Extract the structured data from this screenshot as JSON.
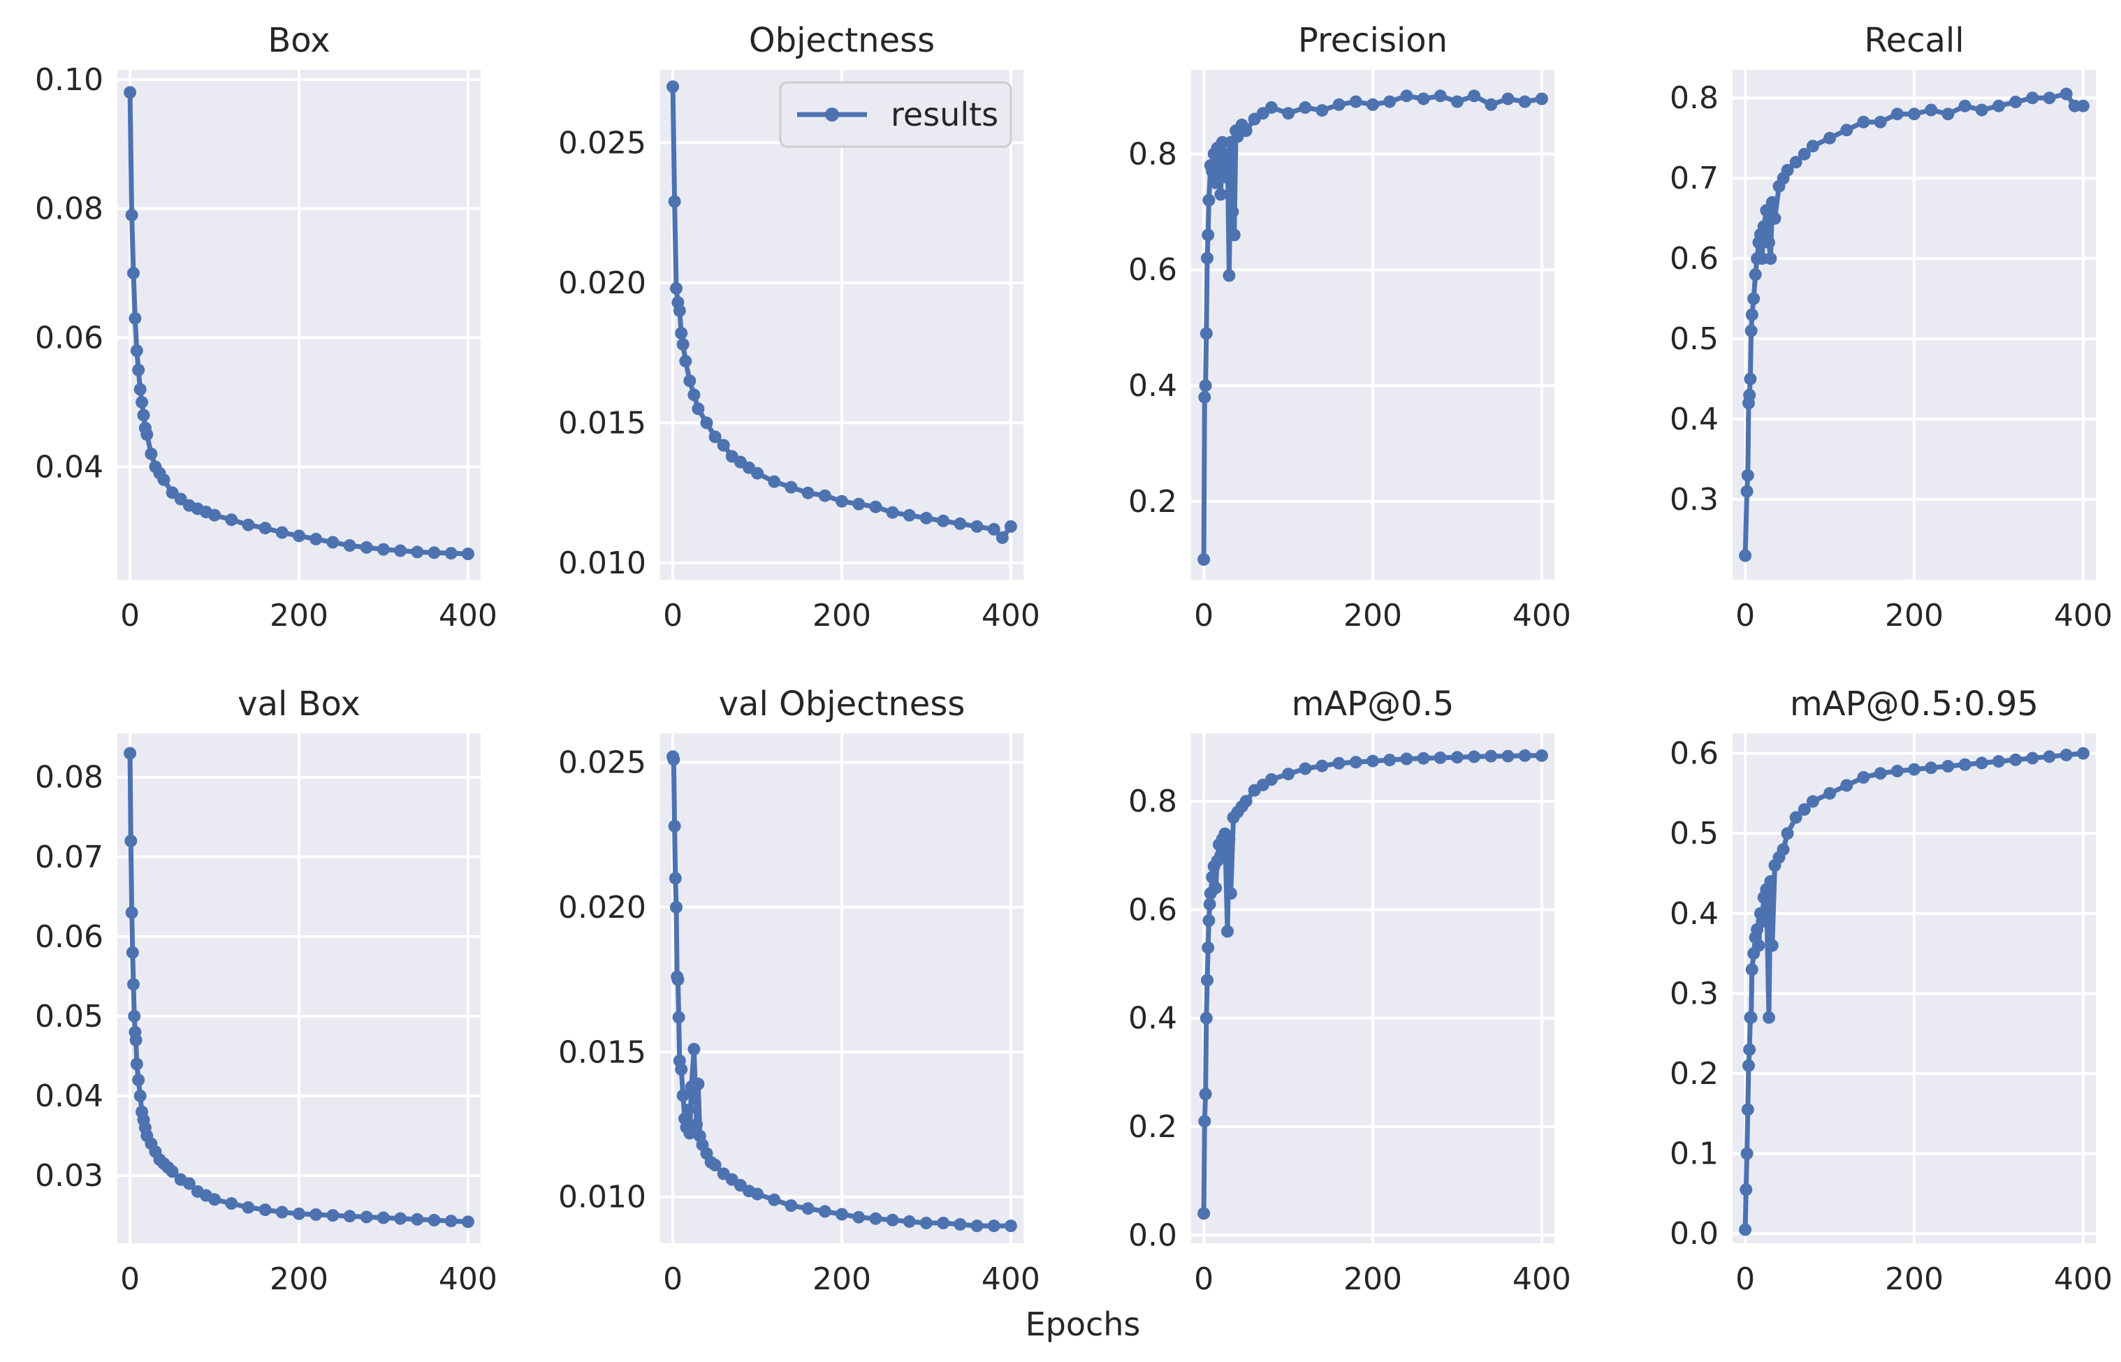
{
  "figure": {
    "xlabel": "Epochs",
    "legend_label": "results",
    "series_color": "#4c72b0",
    "background_color": "#eaeaf2"
  },
  "chart_data": [
    {
      "type": "line",
      "title": "Box",
      "xlabel": "",
      "ylabel": "",
      "xlim": [
        -15,
        415
      ],
      "ylim": [
        0.0225,
        0.1015
      ],
      "xticks": [
        0,
        200,
        400
      ],
      "yticks": [
        0.04,
        0.06,
        0.08,
        0.1
      ],
      "ytick_labels": [
        "0.04",
        "0.06",
        "0.08",
        "0.10"
      ],
      "series": [
        {
          "name": "results",
          "x": [
            0,
            2,
            4,
            6,
            8,
            10,
            12,
            14,
            16,
            18,
            20,
            25,
            30,
            35,
            40,
            50,
            60,
            70,
            80,
            90,
            100,
            120,
            140,
            160,
            180,
            200,
            220,
            240,
            260,
            280,
            300,
            320,
            340,
            360,
            380,
            400
          ],
          "y": [
            0.098,
            0.079,
            0.07,
            0.063,
            0.058,
            0.055,
            0.052,
            0.05,
            0.048,
            0.046,
            0.045,
            0.042,
            0.04,
            0.039,
            0.038,
            0.036,
            0.035,
            0.034,
            0.0335,
            0.033,
            0.0325,
            0.0318,
            0.031,
            0.0305,
            0.0298,
            0.0293,
            0.0288,
            0.0283,
            0.0278,
            0.0275,
            0.0272,
            0.027,
            0.0268,
            0.0267,
            0.0266,
            0.0265
          ]
        }
      ]
    },
    {
      "type": "line",
      "title": "Objectness",
      "xlabel": "",
      "ylabel": "",
      "xlim": [
        -15,
        415
      ],
      "ylim": [
        0.0094,
        0.0276
      ],
      "xticks": [
        0,
        200,
        400
      ],
      "yticks": [
        0.01,
        0.015,
        0.02,
        0.025
      ],
      "ytick_labels": [
        "0.010",
        "0.015",
        "0.020",
        "0.025"
      ],
      "legend": "top-right",
      "series": [
        {
          "name": "results",
          "x": [
            0,
            2,
            4,
            6,
            8,
            10,
            12,
            15,
            20,
            25,
            30,
            40,
            50,
            60,
            70,
            80,
            90,
            100,
            120,
            140,
            160,
            180,
            200,
            220,
            240,
            260,
            280,
            300,
            320,
            340,
            360,
            380,
            390,
            400
          ],
          "y": [
            0.027,
            0.0229,
            0.0198,
            0.0193,
            0.019,
            0.0182,
            0.0178,
            0.0172,
            0.0165,
            0.016,
            0.0155,
            0.015,
            0.0145,
            0.0142,
            0.0138,
            0.0136,
            0.0134,
            0.0132,
            0.0129,
            0.0127,
            0.0125,
            0.0124,
            0.0122,
            0.0121,
            0.012,
            0.0118,
            0.0117,
            0.0116,
            0.0115,
            0.0114,
            0.0113,
            0.0112,
            0.0109,
            0.0113
          ]
        }
      ]
    },
    {
      "type": "line",
      "title": "Precision",
      "xlabel": "",
      "ylabel": "",
      "xlim": [
        -15,
        415
      ],
      "ylim": [
        0.065,
        0.945
      ],
      "xticks": [
        0,
        200,
        400
      ],
      "yticks": [
        0.2,
        0.4,
        0.6,
        0.8
      ],
      "ytick_labels": [
        "0.2",
        "0.4",
        "0.6",
        "0.8"
      ],
      "series": [
        {
          "name": "results",
          "x": [
            0,
            1,
            2,
            3,
            4,
            5,
            6,
            8,
            10,
            12,
            14,
            16,
            18,
            20,
            22,
            25,
            28,
            30,
            32,
            34,
            36,
            38,
            40,
            45,
            50,
            60,
            70,
            80,
            100,
            120,
            140,
            160,
            180,
            200,
            220,
            240,
            260,
            280,
            300,
            320,
            340,
            360,
            380,
            400
          ],
          "y": [
            0.1,
            0.38,
            0.4,
            0.49,
            0.62,
            0.66,
            0.72,
            0.78,
            0.77,
            0.8,
            0.75,
            0.81,
            0.79,
            0.73,
            0.82,
            0.76,
            0.8,
            0.59,
            0.82,
            0.7,
            0.66,
            0.84,
            0.83,
            0.85,
            0.84,
            0.86,
            0.87,
            0.88,
            0.87,
            0.88,
            0.875,
            0.885,
            0.89,
            0.885,
            0.89,
            0.9,
            0.895,
            0.9,
            0.89,
            0.9,
            0.885,
            0.895,
            0.89,
            0.895
          ]
        }
      ]
    },
    {
      "type": "line",
      "title": "Recall",
      "xlabel": "",
      "ylabel": "",
      "xlim": [
        -15,
        415
      ],
      "ylim": [
        0.2,
        0.835
      ],
      "xticks": [
        0,
        200,
        400
      ],
      "yticks": [
        0.3,
        0.4,
        0.5,
        0.6,
        0.7,
        0.8
      ],
      "ytick_labels": [
        "0.3",
        "0.4",
        "0.5",
        "0.6",
        "0.7",
        "0.8"
      ],
      "series": [
        {
          "name": "results",
          "x": [
            0,
            2,
            3,
            4,
            5,
            6,
            7,
            8,
            10,
            12,
            14,
            16,
            18,
            20,
            22,
            25,
            28,
            30,
            32,
            35,
            40,
            45,
            50,
            60,
            70,
            80,
            100,
            120,
            140,
            160,
            180,
            200,
            220,
            240,
            260,
            280,
            300,
            320,
            340,
            360,
            380,
            390,
            400
          ],
          "y": [
            0.23,
            0.31,
            0.33,
            0.42,
            0.43,
            0.45,
            0.51,
            0.53,
            0.55,
            0.58,
            0.6,
            0.62,
            0.63,
            0.6,
            0.64,
            0.66,
            0.62,
            0.6,
            0.67,
            0.65,
            0.69,
            0.7,
            0.71,
            0.72,
            0.73,
            0.74,
            0.75,
            0.76,
            0.77,
            0.77,
            0.78,
            0.78,
            0.785,
            0.78,
            0.79,
            0.785,
            0.79,
            0.795,
            0.8,
            0.8,
            0.805,
            0.79,
            0.79
          ]
        }
      ]
    },
    {
      "type": "line",
      "title": "val Box",
      "xlabel": "",
      "ylabel": "",
      "xlim": [
        -15,
        415
      ],
      "ylim": [
        0.0215,
        0.0855
      ],
      "xticks": [
        0,
        200,
        400
      ],
      "yticks": [
        0.03,
        0.04,
        0.05,
        0.06,
        0.07,
        0.08
      ],
      "ytick_labels": [
        "0.03",
        "0.04",
        "0.05",
        "0.06",
        "0.07",
        "0.08"
      ],
      "series": [
        {
          "name": "results",
          "x": [
            0,
            1,
            2,
            3,
            4,
            5,
            6,
            7,
            8,
            10,
            12,
            14,
            16,
            18,
            20,
            25,
            30,
            35,
            40,
            45,
            50,
            60,
            70,
            80,
            90,
            100,
            120,
            140,
            160,
            180,
            200,
            220,
            240,
            260,
            280,
            300,
            320,
            340,
            360,
            380,
            400
          ],
          "y": [
            0.083,
            0.072,
            0.063,
            0.058,
            0.054,
            0.05,
            0.048,
            0.047,
            0.044,
            0.042,
            0.04,
            0.038,
            0.037,
            0.036,
            0.035,
            0.034,
            0.033,
            0.032,
            0.0315,
            0.031,
            0.0305,
            0.0295,
            0.029,
            0.028,
            0.0275,
            0.027,
            0.0265,
            0.026,
            0.0257,
            0.0254,
            0.0252,
            0.0251,
            0.025,
            0.0249,
            0.0248,
            0.0247,
            0.0246,
            0.0245,
            0.0244,
            0.0243,
            0.0242
          ]
        }
      ]
    },
    {
      "type": "line",
      "title": "val Objectness",
      "xlabel": "",
      "ylabel": "",
      "xlim": [
        -15,
        415
      ],
      "ylim": [
        0.0084,
        0.026
      ],
      "xticks": [
        0,
        200,
        400
      ],
      "yticks": [
        0.01,
        0.015,
        0.02,
        0.025
      ],
      "ytick_labels": [
        "0.010",
        "0.015",
        "0.020",
        "0.025"
      ],
      "series": [
        {
          "name": "results",
          "x": [
            0,
            1,
            2,
            3,
            4,
            5,
            6,
            7,
            8,
            10,
            12,
            14,
            16,
            18,
            20,
            22,
            25,
            28,
            30,
            32,
            35,
            40,
            45,
            50,
            60,
            70,
            80,
            90,
            100,
            120,
            140,
            160,
            180,
            200,
            220,
            240,
            260,
            280,
            300,
            320,
            340,
            360,
            380,
            400
          ],
          "y": [
            0.0252,
            0.0251,
            0.0228,
            0.021,
            0.02,
            0.0176,
            0.0175,
            0.0162,
            0.0147,
            0.0144,
            0.0135,
            0.0127,
            0.0124,
            0.013,
            0.0122,
            0.0138,
            0.0151,
            0.0125,
            0.0139,
            0.0121,
            0.0118,
            0.0115,
            0.0112,
            0.0111,
            0.0108,
            0.0106,
            0.0104,
            0.0102,
            0.0101,
            0.0099,
            0.0097,
            0.0096,
            0.0095,
            0.0094,
            0.0093,
            0.00925,
            0.0092,
            0.00915,
            0.0091,
            0.0091,
            0.00905,
            0.009,
            0.009,
            0.009
          ]
        }
      ]
    },
    {
      "type": "line",
      "title": "mAP@0.5",
      "xlabel": "",
      "ylabel": "",
      "xlim": [
        -15,
        415
      ],
      "ylim": [
        -0.015,
        0.925
      ],
      "xticks": [
        0,
        200,
        400
      ],
      "yticks": [
        0.0,
        0.2,
        0.4,
        0.6,
        0.8
      ],
      "ytick_labels": [
        "0.0",
        "0.2",
        "0.4",
        "0.6",
        "0.8"
      ],
      "series": [
        {
          "name": "results",
          "x": [
            0,
            1,
            2,
            3,
            4,
            5,
            6,
            7,
            8,
            10,
            12,
            14,
            16,
            18,
            20,
            22,
            25,
            28,
            30,
            32,
            35,
            40,
            45,
            50,
            60,
            70,
            80,
            100,
            120,
            140,
            160,
            180,
            200,
            220,
            240,
            260,
            280,
            300,
            320,
            340,
            360,
            380,
            400
          ],
          "y": [
            0.04,
            0.21,
            0.26,
            0.4,
            0.47,
            0.53,
            0.58,
            0.61,
            0.63,
            0.66,
            0.68,
            0.64,
            0.69,
            0.72,
            0.7,
            0.73,
            0.74,
            0.56,
            0.73,
            0.63,
            0.77,
            0.78,
            0.79,
            0.8,
            0.82,
            0.83,
            0.84,
            0.85,
            0.86,
            0.865,
            0.87,
            0.872,
            0.874,
            0.876,
            0.878,
            0.879,
            0.88,
            0.881,
            0.882,
            0.883,
            0.883,
            0.884,
            0.884
          ]
        }
      ]
    },
    {
      "type": "line",
      "title": "mAP@0.5:0.95",
      "xlabel": "",
      "ylabel": "",
      "xlim": [
        -15,
        415
      ],
      "ylim": [
        -0.012,
        0.625
      ],
      "xticks": [
        0,
        200,
        400
      ],
      "yticks": [
        0.0,
        0.1,
        0.2,
        0.3,
        0.4,
        0.5,
        0.6
      ],
      "ytick_labels": [
        "0.0",
        "0.1",
        "0.2",
        "0.3",
        "0.4",
        "0.5",
        "0.6"
      ],
      "series": [
        {
          "name": "results",
          "x": [
            0,
            1,
            2,
            3,
            4,
            5,
            6,
            7,
            8,
            10,
            12,
            14,
            16,
            18,
            20,
            22,
            25,
            28,
            30,
            32,
            35,
            40,
            45,
            50,
            60,
            70,
            80,
            100,
            120,
            140,
            160,
            180,
            200,
            220,
            240,
            260,
            280,
            300,
            320,
            340,
            360,
            380,
            400
          ],
          "y": [
            0.005,
            0.055,
            0.1,
            0.155,
            0.21,
            0.23,
            0.27,
            0.27,
            0.33,
            0.35,
            0.37,
            0.38,
            0.36,
            0.4,
            0.39,
            0.42,
            0.43,
            0.27,
            0.44,
            0.36,
            0.46,
            0.47,
            0.48,
            0.5,
            0.52,
            0.53,
            0.54,
            0.55,
            0.56,
            0.57,
            0.575,
            0.578,
            0.58,
            0.582,
            0.584,
            0.586,
            0.588,
            0.59,
            0.592,
            0.594,
            0.596,
            0.598,
            0.6
          ]
        }
      ]
    }
  ]
}
